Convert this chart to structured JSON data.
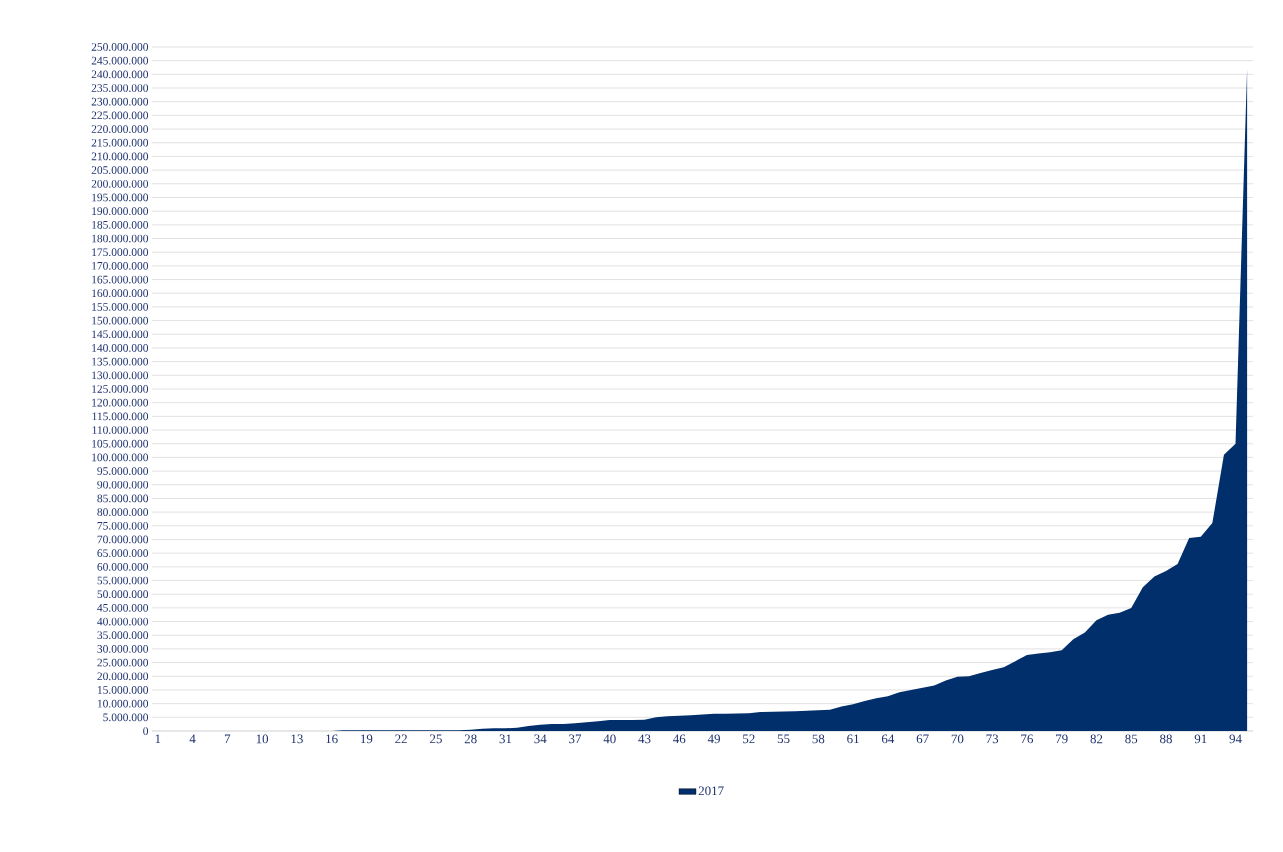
{
  "chart_data": {
    "type": "area",
    "categories": [
      "1",
      null,
      null,
      "4",
      null,
      null,
      "7",
      null,
      null,
      "10",
      null,
      null,
      "13",
      null,
      null,
      "16",
      null,
      null,
      "19",
      null,
      null,
      "22",
      null,
      null,
      "25",
      null,
      null,
      "28",
      null,
      null,
      "31",
      null,
      null,
      "34",
      null,
      null,
      "37",
      null,
      null,
      "40",
      null,
      null,
      "43",
      null,
      null,
      "46",
      null,
      null,
      "49",
      null,
      null,
      "52",
      null,
      null,
      "55",
      null,
      null,
      "58",
      null,
      null,
      "61",
      null,
      null,
      "64",
      null,
      null,
      "67",
      null,
      null,
      "70",
      null,
      null,
      "73",
      null,
      null,
      "76",
      null,
      null,
      "79",
      null,
      null,
      "82",
      null,
      null,
      "85",
      null,
      null,
      "88",
      null,
      null,
      "91",
      null,
      null,
      "94",
      null
    ],
    "series": [
      {
        "name": "2017",
        "color": "#002f6c",
        "values": [
          0,
          0,
          0,
          0,
          0,
          0,
          0,
          0,
          0,
          0,
          0,
          0,
          0,
          0,
          0,
          0,
          300000,
          300000,
          300000,
          300000,
          300000,
          300000,
          300000,
          300000,
          300000,
          300000,
          300000,
          500000,
          800000,
          1000000,
          1000000,
          1200000,
          1800000,
          2300000,
          2600000,
          2600000,
          2800000,
          3200000,
          3600000,
          4000000,
          4000000,
          4000000,
          4100000,
          5000000,
          5400000,
          5600000,
          5800000,
          6000000,
          6300000,
          6300000,
          6400000,
          6500000,
          6900000,
          7000000,
          7100000,
          7200000,
          7400000,
          7600000,
          7800000,
          9000000,
          9800000,
          11000000,
          12000000,
          12700000,
          14200000,
          15000000,
          15800000,
          16600000,
          18500000,
          19800000,
          20000000,
          21200000,
          22300000,
          23300000,
          25500000,
          27800000,
          28300000,
          28800000,
          29500000,
          33500000,
          36000000,
          40500000,
          42500000,
          43200000,
          45000000,
          52500000,
          56500000,
          58500000,
          61000000,
          70500000,
          71000000,
          76000000,
          101000000,
          105000000,
          242000000
        ]
      }
    ],
    "ylim": [
      0,
      250000000
    ],
    "yticks": [
      0,
      {
        "value": 5000000,
        "label": "5.000.000"
      },
      {
        "value": 10000000,
        "label": "10.000.000"
      },
      {
        "value": 15000000,
        "label": "15.000.000"
      },
      {
        "value": 20000000,
        "label": "20.000.000"
      },
      {
        "value": 25000000,
        "label": "25.000.000"
      },
      {
        "value": 30000000,
        "label": "30.000.000"
      },
      {
        "value": 35000000,
        "label": "35.000.000"
      },
      {
        "value": 40000000,
        "label": "40.000.000"
      },
      {
        "value": 45000000,
        "label": "45.000.000"
      },
      {
        "value": 50000000,
        "label": "50.000.000"
      },
      {
        "value": 55000000,
        "label": "55.000.000"
      },
      {
        "value": 60000000,
        "label": "60.000.000"
      },
      {
        "value": 65000000,
        "label": "65.000.000"
      },
      {
        "value": 70000000,
        "label": "70.000.000"
      },
      {
        "value": 75000000,
        "label": "75.000.000"
      },
      {
        "value": 80000000,
        "label": "80.000.000"
      },
      {
        "value": 85000000,
        "label": "85.000.000"
      },
      {
        "value": 90000000,
        "label": "90.000.000"
      },
      {
        "value": 95000000,
        "label": "95.000.000"
      },
      {
        "value": 100000000,
        "label": "100.000.000"
      },
      {
        "value": 105000000,
        "label": "105.000.000"
      },
      {
        "value": 110000000,
        "label": "110.000.000"
      },
      {
        "value": 115000000,
        "label": "115.000.000"
      },
      {
        "value": 120000000,
        "label": "120.000.000"
      },
      {
        "value": 125000000,
        "label": "125.000.000"
      },
      {
        "value": 130000000,
        "label": "130.000.000"
      },
      {
        "value": 135000000,
        "label": "135.000.000"
      },
      {
        "value": 140000000,
        "label": "140.000.000"
      },
      {
        "value": 145000000,
        "label": "145.000.000"
      },
      {
        "value": 150000000,
        "label": "150.000.000"
      },
      {
        "value": 155000000,
        "label": "155.000.000"
      },
      {
        "value": 160000000,
        "label": "160.000.000"
      },
      {
        "value": 165000000,
        "label": "165.000.000"
      },
      {
        "value": 170000000,
        "label": "170.000.000"
      },
      {
        "value": 175000000,
        "label": "175.000.000"
      },
      {
        "value": 180000000,
        "label": "180.000.000"
      },
      {
        "value": 185000000,
        "label": "185.000.000"
      },
      {
        "value": 190000000,
        "label": "190.000.000"
      },
      {
        "value": 195000000,
        "label": "195.000.000"
      },
      {
        "value": 200000000,
        "label": "200.000.000"
      },
      {
        "value": 205000000,
        "label": "205.000.000"
      },
      {
        "value": 210000000,
        "label": "210.000.000"
      },
      {
        "value": 215000000,
        "label": "215.000.000"
      },
      {
        "value": 220000000,
        "label": "220.000.000"
      },
      {
        "value": 225000000,
        "label": "225.000.000"
      },
      {
        "value": 230000000,
        "label": "230.000.000"
      },
      {
        "value": 235000000,
        "label": "235.000.000"
      },
      {
        "value": 240000000,
        "label": "240.000.000"
      },
      {
        "value": 245000000,
        "label": "245.000.000"
      },
      {
        "value": 250000000,
        "label": "250.000.000"
      }
    ],
    "grid": "y",
    "legend": "bottom"
  }
}
